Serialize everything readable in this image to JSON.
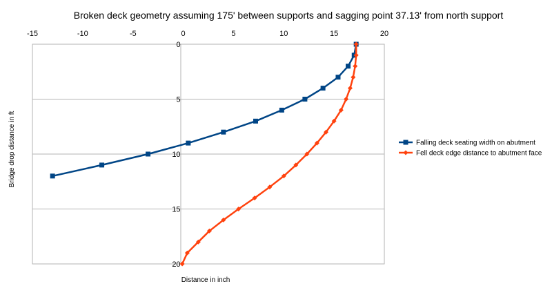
{
  "chart_data": {
    "type": "line",
    "title": "Broken deck geometry assuming 175' between supports and sagging point 37.13' from north support",
    "xlabel": "Distance in inch",
    "ylabel": "Bridge drop distance in ft",
    "xlim": [
      -15,
      20
    ],
    "ylim": [
      20,
      0
    ],
    "y_axis_reversed": true,
    "x_axis_position": "top",
    "y_axis_crosses_x": 0,
    "x_ticks": [
      "-15",
      "-10",
      "-5",
      "0",
      "5",
      "10",
      "15",
      "20"
    ],
    "y_ticks": [
      "0",
      "5",
      "10",
      "15",
      "20"
    ],
    "grid": "horizontal major",
    "legend_position": "right",
    "series": [
      {
        "name": "Falling deck seating width on abutment",
        "color": "#004586",
        "marker": "square",
        "points": [
          {
            "x": 17.2,
            "y": 0
          },
          {
            "x": 17.0,
            "y": 1
          },
          {
            "x": 16.4,
            "y": 2
          },
          {
            "x": 15.4,
            "y": 3
          },
          {
            "x": 13.9,
            "y": 4
          },
          {
            "x": 12.1,
            "y": 5
          },
          {
            "x": 9.8,
            "y": 6
          },
          {
            "x": 7.2,
            "y": 7
          },
          {
            "x": 4.0,
            "y": 8
          },
          {
            "x": 0.5,
            "y": 9
          },
          {
            "x": -3.5,
            "y": 10
          },
          {
            "x": -8.1,
            "y": 11
          },
          {
            "x": -13.0,
            "y": 12
          }
        ]
      },
      {
        "name": "Fell deck edge distance to abutment face",
        "color": "#ff420e",
        "marker": "diamond",
        "points": [
          {
            "x": 17.2,
            "y": 0
          },
          {
            "x": 17.2,
            "y": 1
          },
          {
            "x": 17.1,
            "y": 2
          },
          {
            "x": 16.9,
            "y": 3
          },
          {
            "x": 16.6,
            "y": 4
          },
          {
            "x": 16.2,
            "y": 5
          },
          {
            "x": 15.7,
            "y": 6
          },
          {
            "x": 15.0,
            "y": 7
          },
          {
            "x": 14.2,
            "y": 8
          },
          {
            "x": 13.3,
            "y": 9
          },
          {
            "x": 12.3,
            "y": 10
          },
          {
            "x": 11.2,
            "y": 11
          },
          {
            "x": 10.0,
            "y": 12
          },
          {
            "x": 8.6,
            "y": 13
          },
          {
            "x": 7.1,
            "y": 14
          },
          {
            "x": 5.5,
            "y": 15
          },
          {
            "x": 4.0,
            "y": 16
          },
          {
            "x": 2.6,
            "y": 17
          },
          {
            "x": 1.5,
            "y": 18
          },
          {
            "x": 0.4,
            "y": 19
          },
          {
            "x": -0.1,
            "y": 20
          }
        ]
      }
    ]
  }
}
